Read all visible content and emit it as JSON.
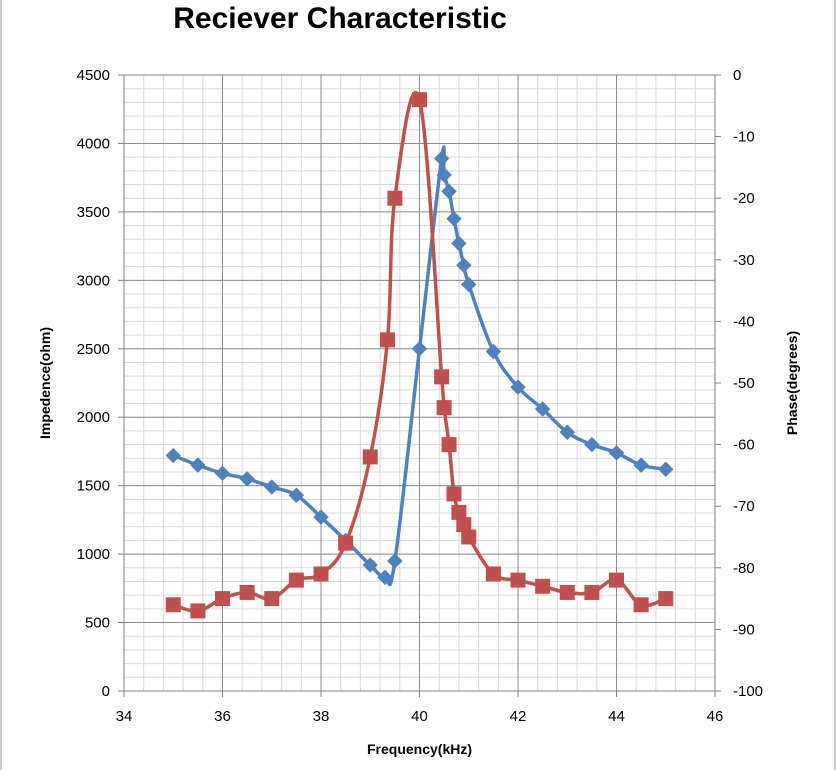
{
  "chart_data": {
    "type": "line",
    "title": "Reciever Characteristic",
    "xlabel": "Frequency(kHz)",
    "ylabel": "Impedence(ohm)",
    "y2label": "Phase(degrees)",
    "xlim": [
      34,
      46
    ],
    "ylim": [
      0,
      4500
    ],
    "y2lim": [
      -100,
      0
    ],
    "x_ticks": [
      34,
      36,
      38,
      40,
      42,
      44,
      46
    ],
    "y_ticks": [
      0,
      500,
      1000,
      1500,
      2000,
      2500,
      3000,
      3500,
      4000,
      4500
    ],
    "y2_ticks": [
      0,
      -10,
      -20,
      -30,
      -40,
      -50,
      -60,
      -70,
      -80,
      -90,
      -100
    ],
    "grid": true,
    "minor_grid": true,
    "legend": "none",
    "series": [
      {
        "axis": "left",
        "color": "#4f81bd",
        "marker": "diamond",
        "x": [
          35,
          35.5,
          36,
          36.5,
          37,
          37.5,
          38,
          38.5,
          39,
          39.3,
          39.5,
          40,
          40.45,
          40.5,
          40.6,
          40.7,
          40.8,
          40.9,
          41,
          41.5,
          42,
          42.5,
          43,
          43.5,
          44,
          44.5,
          45
        ],
        "values": [
          1720,
          1650,
          1590,
          1550,
          1490,
          1430,
          1270,
          1100,
          920,
          830,
          950,
          2500,
          3890,
          3770,
          3650,
          3450,
          3270,
          3110,
          2970,
          2480,
          2220,
          2060,
          1890,
          1800,
          1740,
          1650,
          1620
        ]
      },
      {
        "axis": "right",
        "color": "#c0504d",
        "marker": "square",
        "x": [
          35,
          35.5,
          36,
          36.5,
          37,
          37.5,
          38,
          38.5,
          39,
          39.35,
          39.5,
          40,
          40.45,
          40.5,
          40.6,
          40.7,
          40.8,
          40.9,
          41,
          41.5,
          42,
          42.5,
          43,
          43.5,
          44,
          44.5,
          45
        ],
        "values": [
          -86,
          -87,
          -85,
          -84,
          -85,
          -82,
          -81,
          -76,
          -62,
          -43,
          -20,
          -4,
          -49,
          -54,
          -60,
          -68,
          -71,
          -73,
          -75,
          -81,
          -82,
          -83,
          -84,
          -84,
          -82,
          -86,
          -85
        ]
      }
    ]
  }
}
